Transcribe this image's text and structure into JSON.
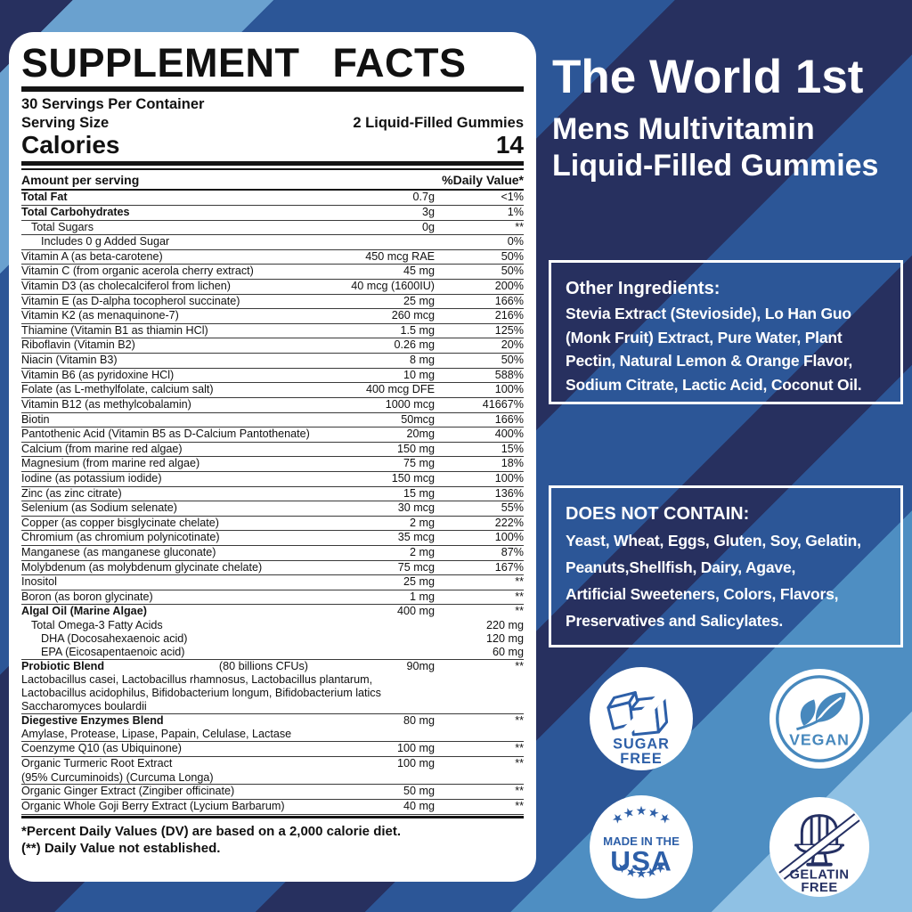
{
  "colors": {
    "navy": "#27305f",
    "royal_blue": "#2c5697",
    "steel_blue": "#4e8ec2",
    "light_blue": "#8fc1e4",
    "badge_blue": "#2d5fa8",
    "panel_bg": "#ffffff",
    "text": "#111111"
  },
  "panel": {
    "title": "SUPPLEMENT FACTS",
    "servings_per_container": "30 Servings Per Container",
    "serving_size_label": "Serving Size",
    "serving_size_value": "2 Liquid-Filled Gummies",
    "calories_label": "Calories",
    "calories_value": "14",
    "amount_header": "Amount per serving",
    "dv_header": "%Daily Value*",
    "rows": [
      {
        "n": "Total Fat",
        "a": "0.7g",
        "d": "<1%",
        "b": true
      },
      {
        "n": "Total Carbohydrates",
        "a": "3g",
        "d": "1%",
        "b": true
      },
      {
        "n": "Total Sugars",
        "a": "0g",
        "d": "**",
        "i": 1
      },
      {
        "n": "Includes 0 g Added Sugar",
        "a": "",
        "d": "0%",
        "i": 2
      },
      {
        "n": "Vitamin A (as beta-carotene)",
        "a": "450 mcg RAE",
        "d": "50%"
      },
      {
        "n": "Vitamin C (from organic acerola cherry extract)",
        "a": "45 mg",
        "d": "50%"
      },
      {
        "n": "Vitamin D3 (as cholecalciferol from lichen)",
        "a": "40 mcg (1600IU)",
        "d": "200%"
      },
      {
        "n": "Vitamin E (as D-alpha tocopherol succinate)",
        "a": "25 mg",
        "d": "166%"
      },
      {
        "n": "Vitamin K2 (as menaquinone-7)",
        "a": "260 mcg",
        "d": "216%"
      },
      {
        "n": "Thiamine (Vitamin B1 as thiamin HCl)",
        "a": "1.5 mg",
        "d": "125%"
      },
      {
        "n": "Riboflavin (Vitamin B2)",
        "a": "0.26 mg",
        "d": "20%"
      },
      {
        "n": "Niacin (Vitamin B3)",
        "a": "8 mg",
        "d": "50%"
      },
      {
        "n": "Vitamin B6 (as pyridoxine HCl)",
        "a": "10 mg",
        "d": "588%"
      },
      {
        "n": "Folate (as L-methylfolate, calcium salt)",
        "a": "400 mcg DFE",
        "d": "100%"
      },
      {
        "n": "Vitamin B12 (as methylcobalamin)",
        "a": "1000 mcg",
        "d": "41667%"
      },
      {
        "n": "Biotin",
        "a": "50mcg",
        "d": "166%"
      },
      {
        "n": "Pantothenic Acid (Vitamin B5 as D-Calcium Pantothenate)",
        "a": "20mg",
        "d": "400%"
      },
      {
        "n": "Calcium (from marine red algae)",
        "a": "150 mg",
        "d": "15%"
      },
      {
        "n": "Magnesium (from marine red algae)",
        "a": "75 mg",
        "d": "18%"
      },
      {
        "n": "Iodine (as potassium iodide)",
        "a": "150 mcg",
        "d": "100%"
      },
      {
        "n": "Zinc (as zinc citrate)",
        "a": "15 mg",
        "d": "136%"
      },
      {
        "n": "Selenium (as Sodium selenate)",
        "a": "30 mcg",
        "d": "55%"
      },
      {
        "n": "Copper (as copper bisglycinate chelate)",
        "a": "2 mg",
        "d": "222%"
      },
      {
        "n": "Chromium (as chromium polynicotinate)",
        "a": "35 mcg",
        "d": "100%"
      },
      {
        "n": "Manganese (as manganese gluconate)",
        "a": "2 mg",
        "d": "87%"
      },
      {
        "n": "Molybdenum (as molybdenum glycinate chelate)",
        "a": "75 mcg",
        "d": "167%"
      },
      {
        "n": "Inositol",
        "a": "25 mg",
        "d": "**"
      },
      {
        "n": "Boron (as boron glycinate)",
        "a": "1 mg",
        "d": "**"
      },
      {
        "n": "Algal Oil (Marine Algae)",
        "a": "400 mg",
        "d": "**",
        "b": true,
        "sub": [
          {
            "n": "Total Omega-3 Fatty Acids",
            "a": "220 mg",
            "i": 1
          },
          {
            "n": "DHA (Docosahexaenoic acid)",
            "a": "120 mg",
            "i": 2
          },
          {
            "n": "EPA (Eicosapentaenoic acid)",
            "a": "60 mg",
            "i": 2
          }
        ]
      },
      {
        "n": "Probiotic Blend",
        "m": "(80 billions CFUs)",
        "a": "90mg",
        "d": "**",
        "b": true,
        "sub": [
          {
            "n": "Lactobacillus casei, Lactobacillus rhamnosus, Lactobacillus plantarum,"
          },
          {
            "n": "Lactobacillus acidophilus, Bifidobacterium longum, Bifidobacterium latics"
          },
          {
            "n": "Saccharomyces boulardii"
          }
        ]
      },
      {
        "n": "Diegestive Enzymes Blend",
        "a": "80 mg",
        "d": "**",
        "b": true,
        "sub": [
          {
            "n": "Amylase, Protease, Lipase, Papain, Celulase, Lactase"
          }
        ]
      },
      {
        "n": "Coenzyme Q10 (as Ubiquinone)",
        "a": "100 mg",
        "d": "**"
      },
      {
        "n": "Organic Turmeric Root Extract",
        "a": "100 mg",
        "d": "**",
        "sub": [
          {
            "n": "(95% Curcuminoids) (Curcuma Longa)"
          }
        ]
      },
      {
        "n": "Organic Ginger Extract (Zingiber officinate)",
        "a": "50 mg",
        "d": "**"
      },
      {
        "n": "Organic Whole Goji Berry Extract (Lycium Barbarum)",
        "a": "40 mg",
        "d": "**"
      }
    ],
    "footnote1": "*Percent Daily Values (DV) are based on a 2,000 calorie diet.",
    "footnote2": "(**) Daily Value not established."
  },
  "brand": {
    "title": "The World 1st",
    "subtitle1": "Mens Multivitamin",
    "subtitle2": "Liquid-Filled Gummies"
  },
  "other_box": {
    "heading": "Other Ingredients:",
    "lines": [
      "Stevia Extract (Stevioside), Lo Han Guo",
      "(Monk Fruit) Extract, Pure Water, Plant",
      "Pectin, Natural Lemon & Orange Flavor,",
      "Sodium Citrate, Lactic Acid, Coconut Oil."
    ]
  },
  "not_contain_box": {
    "heading": "DOES NOT CONTAIN:",
    "lines": [
      "Yeast, Wheat, Eggs, Gluten, Soy, Gelatin,",
      "Peanuts,Shellfish, Dairy, Agave,",
      "Artificial Sweeteners, Colors, Flavors,",
      "Preservatives and Salicylates."
    ]
  },
  "badges": [
    {
      "name": "sugar-free",
      "line1": "SUGAR",
      "line2": "FREE"
    },
    {
      "name": "vegan",
      "line1": "VEGAN"
    },
    {
      "name": "made-in-usa",
      "stars_top": "★★★★★",
      "line1": "MADE IN THE",
      "line2": "USA",
      "stars_bottom": "★★★★★"
    },
    {
      "name": "gelatin-free",
      "line1": "GELATIN",
      "line2": "FREE"
    }
  ]
}
